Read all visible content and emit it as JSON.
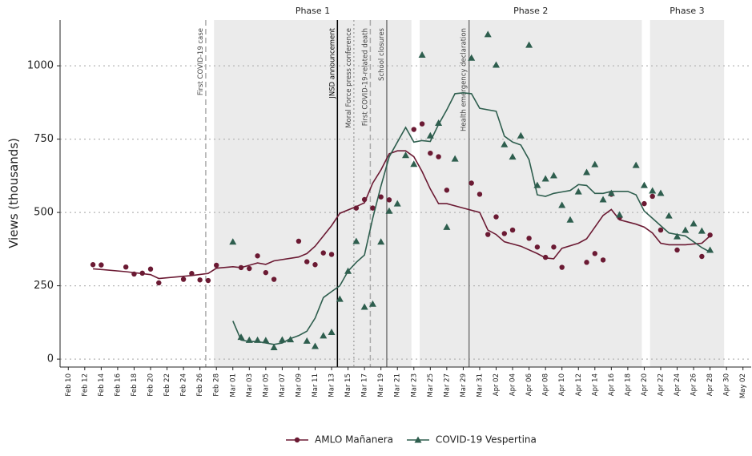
{
  "chart_data": {
    "type": "line",
    "y_label": "Views (thousands)",
    "ylim": [
      -27,
      1156
    ],
    "yticks": [
      0,
      250,
      500,
      750,
      1000
    ],
    "grid": true,
    "xlim": [
      "Feb 09",
      "May 03"
    ],
    "xticks": [
      "Feb 10",
      "Feb 12",
      "Feb 14",
      "Feb 16",
      "Feb 18",
      "Feb 20",
      "Feb 22",
      "Feb 24",
      "Feb 26",
      "Feb 28",
      "Mar 01",
      "Mar 03",
      "Mar 05",
      "Mar 07",
      "Mar 09",
      "Mar 11",
      "Mar 13",
      "Mar 15",
      "Mar 17",
      "Mar 19",
      "Mar 21",
      "Mar 23",
      "Mar 25",
      "Mar 27",
      "Mar 29",
      "Mar 31",
      "Apr 02",
      "Apr 04",
      "Apr 06",
      "Apr 08",
      "Apr 10",
      "Apr 12",
      "Apr 14",
      "Apr 16",
      "Apr 18",
      "Apr 20",
      "Apr 22",
      "Apr 24",
      "Apr 26",
      "Apr 28",
      "Apr 30",
      "May 02"
    ],
    "regions": [
      {
        "label": "Phase 1",
        "start": "Feb 28",
        "end": "Mar 23"
      },
      {
        "label": "Phase 2",
        "start": "Mar 24",
        "end": "Apr 20"
      },
      {
        "label": "Phase 3",
        "start": "Apr 21",
        "end": "Apr 30"
      }
    ],
    "events": [
      {
        "date": "Feb 27",
        "label": "First COVID-19 case",
        "color": "#aaaaaa",
        "style": "dashed"
      },
      {
        "date": "Mar 14",
        "label": "JNSD announcement",
        "color": "#000000",
        "style": "solid"
      },
      {
        "date": "Mar 16",
        "label": "Moral Force press conference",
        "color": "#aaaaaa",
        "style": "dotted"
      },
      {
        "date": "Mar 18",
        "label": "First COVID-19-related death",
        "color": "#aaaaaa",
        "style": "dashed"
      },
      {
        "date": "Mar 20",
        "label": "School closures",
        "color": "#777777",
        "style": "solid"
      },
      {
        "date": "Mar 30",
        "label": "Health emergency declaration",
        "color": "#777777",
        "style": "solid"
      }
    ],
    "series": [
      {
        "name": "AMLO Mañanera",
        "color": "#6b1a33",
        "marker": "circle",
        "points": {
          "x": [
            "Feb 13",
            "Feb 14",
            "Feb 17",
            "Feb 18",
            "Feb 19",
            "Feb 20",
            "Feb 21",
            "Feb 24",
            "Feb 25",
            "Feb 26",
            "Feb 27",
            "Feb 28",
            "Mar 02",
            "Mar 03",
            "Mar 04",
            "Mar 05",
            "Mar 06",
            "Mar 09",
            "Mar 10",
            "Mar 11",
            "Mar 12",
            "Mar 13",
            "Mar 16",
            "Mar 17",
            "Mar 18",
            "Mar 19",
            "Mar 20",
            "Mar 23",
            "Mar 24",
            "Mar 25",
            "Mar 26",
            "Mar 27",
            "Mar 30",
            "Mar 31",
            "Apr 01",
            "Apr 02",
            "Apr 03",
            "Apr 04",
            "Apr 06",
            "Apr 07",
            "Apr 08",
            "Apr 09",
            "Apr 10",
            "Apr 13",
            "Apr 14",
            "Apr 15",
            "Apr 16",
            "Apr 17",
            "Apr 20",
            "Apr 21",
            "Apr 22",
            "Apr 24",
            "Apr 27",
            "Apr 28"
          ],
          "values": [
            322,
            321,
            314,
            290,
            293,
            307,
            260,
            272,
            292,
            270,
            268,
            320,
            312,
            309,
            352,
            295,
            272,
            402,
            332,
            322,
            362,
            357,
            515,
            544,
            515,
            553,
            543,
            783,
            802,
            702,
            690,
            576,
            600,
            562,
            425,
            485,
            428,
            440,
            412,
            382,
            347,
            382,
            313,
            330,
            360,
            338,
            562,
            483,
            530,
            555,
            440,
            372,
            350,
            423
          ]
        },
        "trend": {
          "x": [
            "Feb 13",
            "Feb 17",
            "Feb 20",
            "Feb 21",
            "Feb 25",
            "Feb 27",
            "Feb 28",
            "Mar 01",
            "Mar 02",
            "Mar 03",
            "Mar 04",
            "Mar 05",
            "Mar 06",
            "Mar 09",
            "Mar 10",
            "Mar 11",
            "Mar 12",
            "Mar 13",
            "Mar 14",
            "Mar 16",
            "Mar 17",
            "Mar 18",
            "Mar 19",
            "Mar 20",
            "Mar 21",
            "Mar 22",
            "Mar 23",
            "Mar 24",
            "Mar 25",
            "Mar 26",
            "Mar 27",
            "Mar 29",
            "Mar 31",
            "Apr 01",
            "Apr 02",
            "Apr 03",
            "Apr 05",
            "Apr 07",
            "Apr 08",
            "Apr 09",
            "Apr 10",
            "Apr 12",
            "Apr 13",
            "Apr 14",
            "Apr 15",
            "Apr 16",
            "Apr 17",
            "Apr 19",
            "Apr 20",
            "Apr 21",
            "Apr 22",
            "Apr 23",
            "Apr 25",
            "Apr 27",
            "Apr 28"
          ],
          "values": [
            308,
            298,
            288,
            275,
            285,
            292,
            310,
            315,
            312,
            320,
            328,
            323,
            335,
            348,
            360,
            385,
            420,
            455,
            497,
            520,
            533,
            600,
            645,
            700,
            710,
            710,
            690,
            640,
            580,
            530,
            530,
            515,
            500,
            440,
            425,
            400,
            385,
            360,
            345,
            342,
            378,
            395,
            410,
            450,
            490,
            510,
            475,
            460,
            450,
            430,
            395,
            390,
            390,
            395,
            420
          ]
        }
      },
      {
        "name": "COVID-19 Vespertina",
        "color": "#2e5e4e",
        "marker": "triangle",
        "points": {
          "x": [
            "Mar 01",
            "Mar 02",
            "Mar 03",
            "Mar 04",
            "Mar 05",
            "Mar 06",
            "Mar 07",
            "Mar 08",
            "Mar 10",
            "Mar 11",
            "Mar 12",
            "Mar 13",
            "Mar 14",
            "Mar 15",
            "Mar 16",
            "Mar 17",
            "Mar 18",
            "Mar 19",
            "Mar 20",
            "Mar 21",
            "Mar 22",
            "Mar 23",
            "Mar 24",
            "Mar 25",
            "Mar 26",
            "Mar 27",
            "Mar 28",
            "Mar 30",
            "Apr 01",
            "Apr 02",
            "Apr 03",
            "Apr 04",
            "Apr 05",
            "Apr 06",
            "Apr 07",
            "Apr 08",
            "Apr 09",
            "Apr 10",
            "Apr 11",
            "Apr 12",
            "Apr 13",
            "Apr 14",
            "Apr 15",
            "Apr 16",
            "Apr 17",
            "Apr 19",
            "Apr 20",
            "Apr 21",
            "Apr 22",
            "Apr 23",
            "Apr 24",
            "Apr 25",
            "Apr 26",
            "Apr 27",
            "Apr 28"
          ],
          "values": [
            400,
            75,
            65,
            65,
            64,
            40,
            66,
            67,
            62,
            44,
            80,
            92,
            205,
            300,
            402,
            178,
            188,
            400,
            505,
            530,
            695,
            665,
            1037,
            762,
            805,
            450,
            683,
            1027,
            1107,
            1003,
            732,
            690,
            762,
            1071,
            593,
            615,
            626,
            525,
            475,
            571,
            637,
            664,
            544,
            566,
            492,
            661,
            593,
            574,
            566,
            489,
            418,
            440,
            462,
            437,
            372
          ]
        },
        "trend": {
          "x": [
            "Mar 01",
            "Mar 02",
            "Mar 03",
            "Mar 04",
            "Mar 05",
            "Mar 06",
            "Mar 07",
            "Mar 08",
            "Mar 09",
            "Mar 10",
            "Mar 11",
            "Mar 12",
            "Mar 13",
            "Mar 14",
            "Mar 15",
            "Mar 16",
            "Mar 17",
            "Mar 18",
            "Mar 19",
            "Mar 20",
            "Mar 21",
            "Mar 22",
            "Mar 23",
            "Mar 24",
            "Mar 25",
            "Mar 26",
            "Mar 27",
            "Mar 28",
            "Mar 29",
            "Mar 30",
            "Mar 31",
            "Apr 01",
            "Apr 02",
            "Apr 03",
            "Apr 04",
            "Apr 05",
            "Apr 06",
            "Apr 07",
            "Apr 08",
            "Apr 09",
            "Apr 10",
            "Apr 11",
            "Apr 12",
            "Apr 13",
            "Apr 14",
            "Apr 15",
            "Apr 16",
            "Apr 17",
            "Apr 18",
            "Apr 19",
            "Apr 20",
            "Apr 21",
            "Apr 22",
            "Apr 23",
            "Apr 24",
            "Apr 25",
            "Apr 26",
            "Apr 27",
            "Apr 28"
          ],
          "values": [
            130,
            65,
            60,
            60,
            55,
            50,
            55,
            70,
            80,
            95,
            140,
            210,
            230,
            250,
            300,
            330,
            355,
            480,
            590,
            690,
            740,
            790,
            740,
            745,
            742,
            800,
            850,
            905,
            908,
            905,
            855,
            850,
            845,
            760,
            740,
            730,
            680,
            560,
            555,
            565,
            570,
            575,
            595,
            592,
            565,
            565,
            572,
            572,
            572,
            560,
            505,
            480,
            455,
            430,
            425,
            420,
            400,
            380,
            365
          ]
        }
      }
    ]
  }
}
